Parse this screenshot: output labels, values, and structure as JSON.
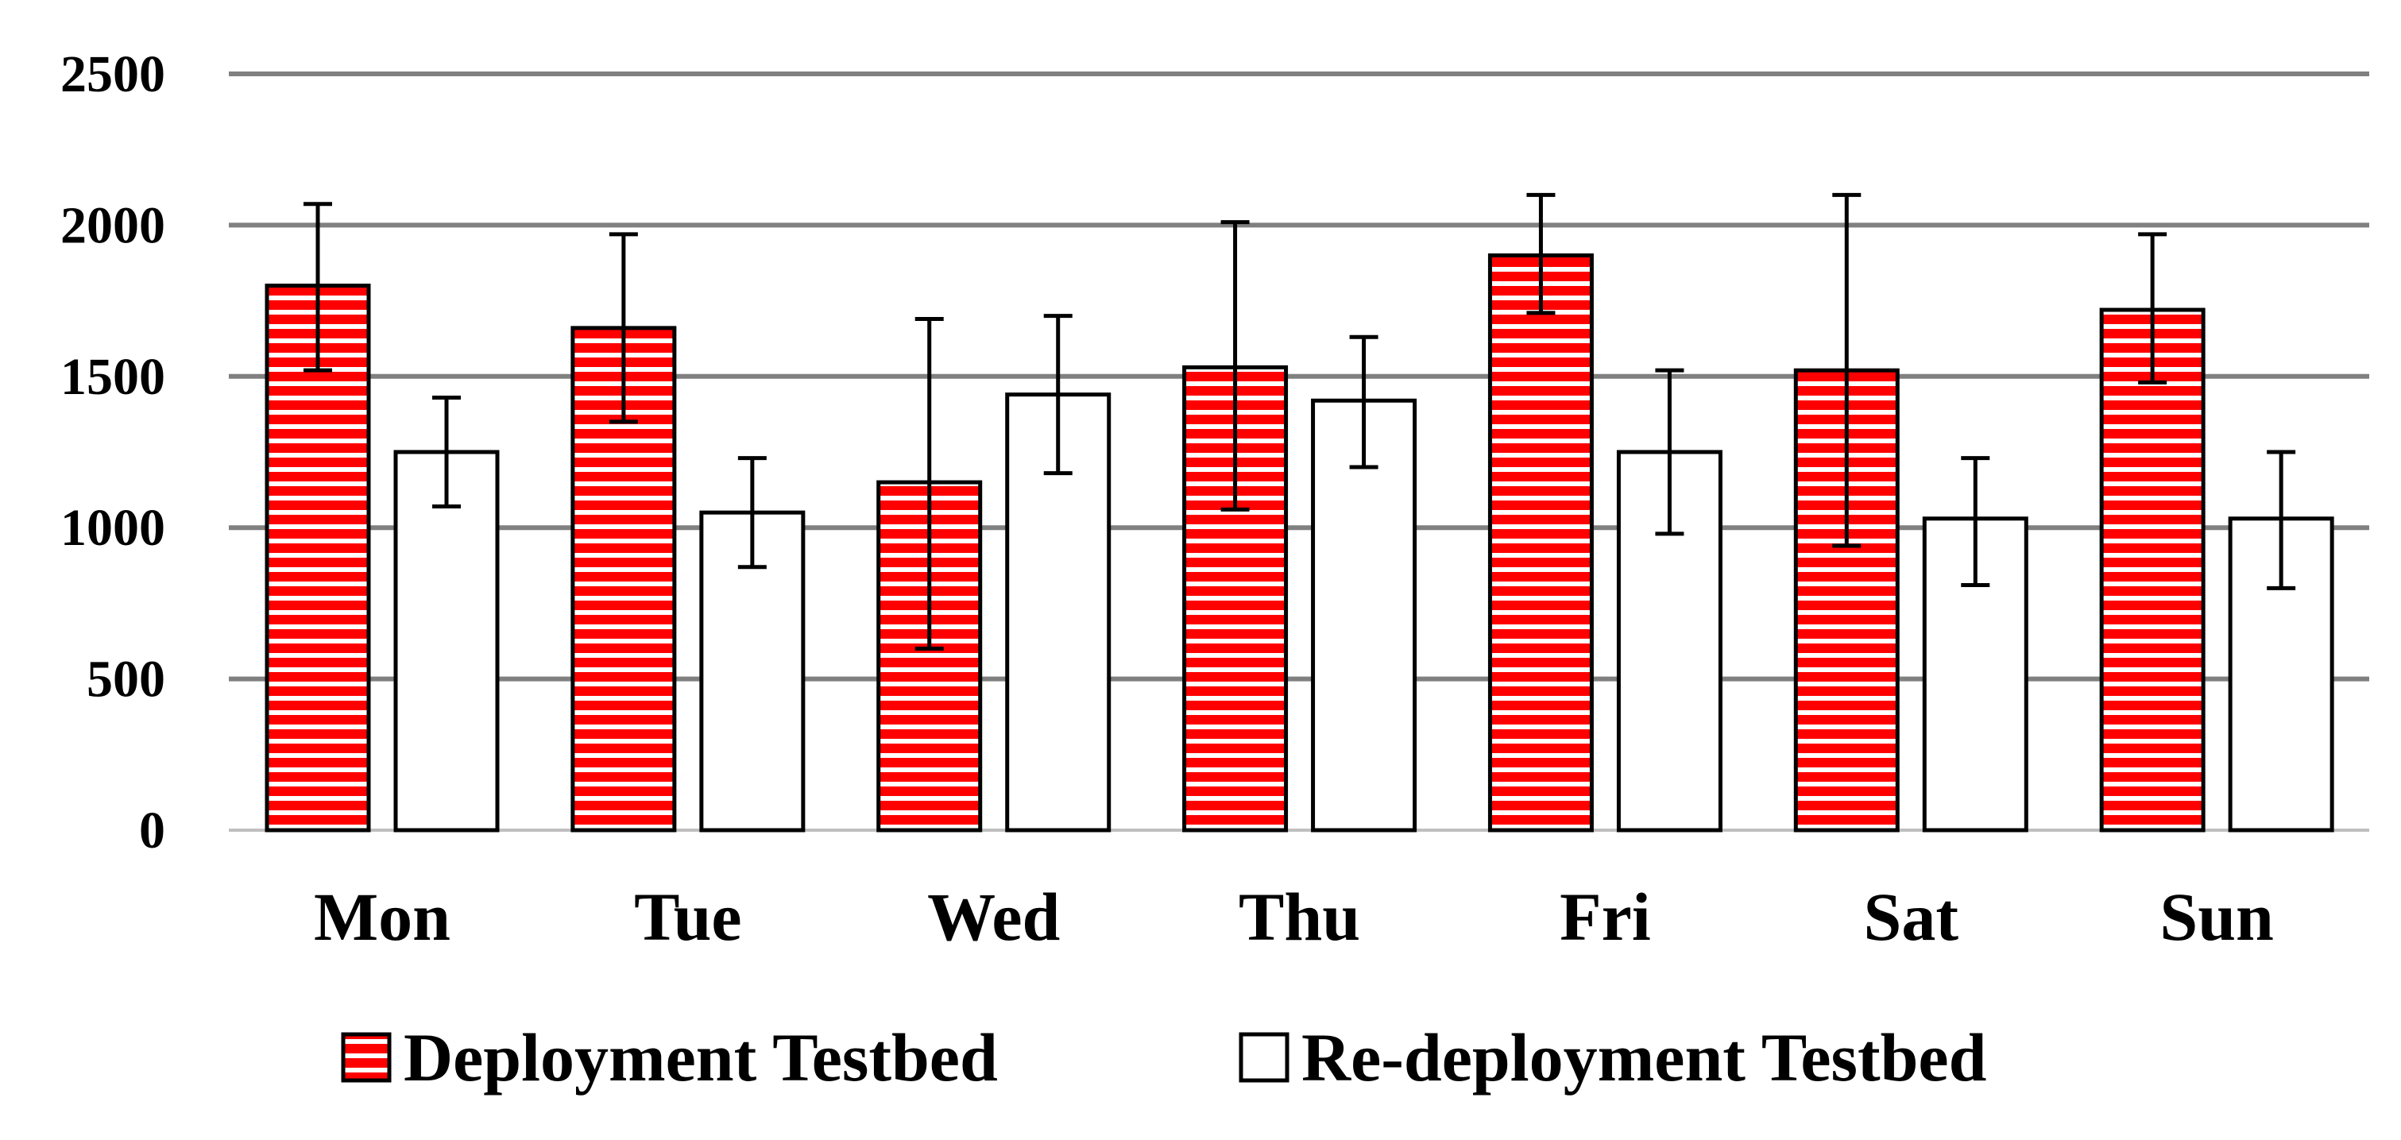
{
  "chart_data": {
    "type": "bar",
    "title": "",
    "xlabel": "",
    "ylabel": "",
    "categories": [
      "Mon",
      "Tue",
      "Wed",
      "Thu",
      "Fri",
      "Sat",
      "Sun"
    ],
    "ylim": [
      0,
      2500
    ],
    "yticks": [
      0,
      500,
      1000,
      1500,
      2000,
      2500
    ],
    "grid": true,
    "legend_position": "bottom",
    "series": [
      {
        "name": "Deployment Testbed",
        "fill": "#ff0000",
        "pattern": "horizontal-stripes",
        "values": [
          1800,
          1660,
          1150,
          1530,
          1900,
          1520,
          1720
        ],
        "error_low": [
          1520,
          1350,
          600,
          1060,
          1710,
          940,
          1480
        ],
        "error_high": [
          2070,
          1970,
          1690,
          2010,
          2100,
          2100,
          1970
        ]
      },
      {
        "name": "Re-deployment Testbed",
        "fill": "#ffffff",
        "pattern": "solid",
        "values": [
          1250,
          1050,
          1440,
          1420,
          1250,
          1030,
          1030
        ],
        "error_low": [
          1070,
          870,
          1180,
          1200,
          980,
          810,
          800
        ],
        "error_high": [
          1430,
          1230,
          1700,
          1630,
          1520,
          1230,
          1250
        ]
      }
    ],
    "colors": {
      "grid": "#808080",
      "axis": "#bfbfbf",
      "bar_stroke": "#000000",
      "error_bar": "#000000",
      "stripe_gap": "#ffffff"
    }
  }
}
